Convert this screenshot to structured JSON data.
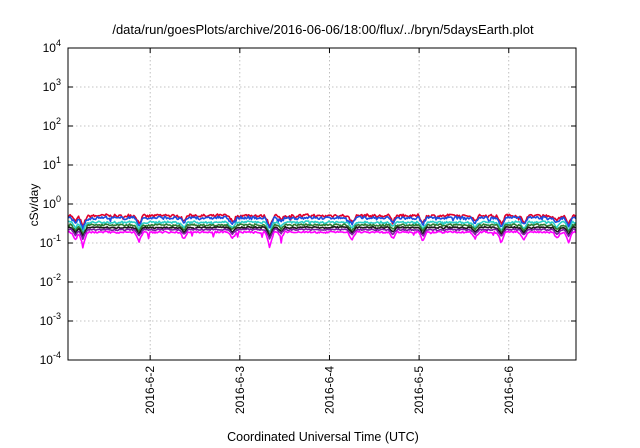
{
  "chart_data": {
    "type": "line",
    "title": "/data/run/goesPlots/archive/2016-06-06/18:00/flux/../bryn/5daysEarth.plot",
    "xlabel": "Coordinated Universal Time (UTC)",
    "ylabel": "cSv/day",
    "xscale": "time",
    "xlim": [
      "2016-06-01T02:00",
      "2016-06-06T18:00"
    ],
    "yscale": "log",
    "ylim": [
      0.0001,
      10000
    ],
    "x_ticks": [
      {
        "value": "2016-06-02T00:00",
        "label": "2016-6-2"
      },
      {
        "value": "2016-06-03T00:00",
        "label": "2016-6-3"
      },
      {
        "value": "2016-06-04T00:00",
        "label": "2016-6-4"
      },
      {
        "value": "2016-06-05T00:00",
        "label": "2016-6-5"
      },
      {
        "value": "2016-06-06T00:00",
        "label": "2016-6-6"
      }
    ],
    "y_ticks": [
      {
        "value": 0.0001,
        "base": "10",
        "exp": "-4"
      },
      {
        "value": 0.001,
        "base": "10",
        "exp": "-3"
      },
      {
        "value": 0.01,
        "base": "10",
        "exp": "-2"
      },
      {
        "value": 0.1,
        "base": "10",
        "exp": "-1"
      },
      {
        "value": 1,
        "base": "10",
        "exp": "0"
      },
      {
        "value": 10,
        "base": "10",
        "exp": "1"
      },
      {
        "value": 100,
        "base": "10",
        "exp": "2"
      },
      {
        "value": 1000,
        "base": "10",
        "exp": "3"
      },
      {
        "value": 10000,
        "base": "10",
        "exp": "4"
      }
    ],
    "grid": true,
    "legend": "none",
    "series": [
      {
        "color": "#e0002a",
        "base": 0.5,
        "amp": 0.08,
        "dip_scale": 0.3
      },
      {
        "color": "#1a4fe0",
        "base": 0.44,
        "amp": 0.08,
        "dip_scale": 0.3
      },
      {
        "color": "#2ad0c8",
        "base": 0.34,
        "amp": 0.06,
        "dip_scale": 0.25
      },
      {
        "color": "#2e7d32",
        "base": 0.29,
        "amp": 0.05,
        "dip_scale": 0.2
      },
      {
        "color": "#1a1a1a",
        "base": 0.25,
        "amp": 0.04,
        "dip_scale": 0.2
      },
      {
        "color": "#7b1fa2",
        "base": 0.22,
        "amp": 0.04,
        "dip_scale": 0.2
      },
      {
        "color": "#ff00ff",
        "base": 0.19,
        "amp": 0.05,
        "dip_scale": 0.5
      }
    ],
    "dip_events": [
      {
        "x": "2016-06-01T04:00",
        "depth": 0.35
      },
      {
        "x": "2016-06-01T06:00",
        "depth": 0.55
      },
      {
        "x": "2016-06-01T21:00",
        "depth": 0.4
      },
      {
        "x": "2016-06-02T09:00",
        "depth": 0.3
      },
      {
        "x": "2016-06-02T22:00",
        "depth": 0.3
      },
      {
        "x": "2016-06-03T08:00",
        "depth": 0.55
      },
      {
        "x": "2016-06-03T11:00",
        "depth": 0.25
      },
      {
        "x": "2016-06-04T06:00",
        "depth": 0.35
      },
      {
        "x": "2016-06-04T17:00",
        "depth": 0.3
      },
      {
        "x": "2016-06-05T01:00",
        "depth": 0.4
      },
      {
        "x": "2016-06-05T15:00",
        "depth": 0.3
      },
      {
        "x": "2016-06-05T22:00",
        "depth": 0.45
      },
      {
        "x": "2016-06-06T04:00",
        "depth": 0.35
      },
      {
        "x": "2016-06-06T13:00",
        "depth": 0.3
      },
      {
        "x": "2016-06-06T16:00",
        "depth": 0.45
      }
    ]
  }
}
